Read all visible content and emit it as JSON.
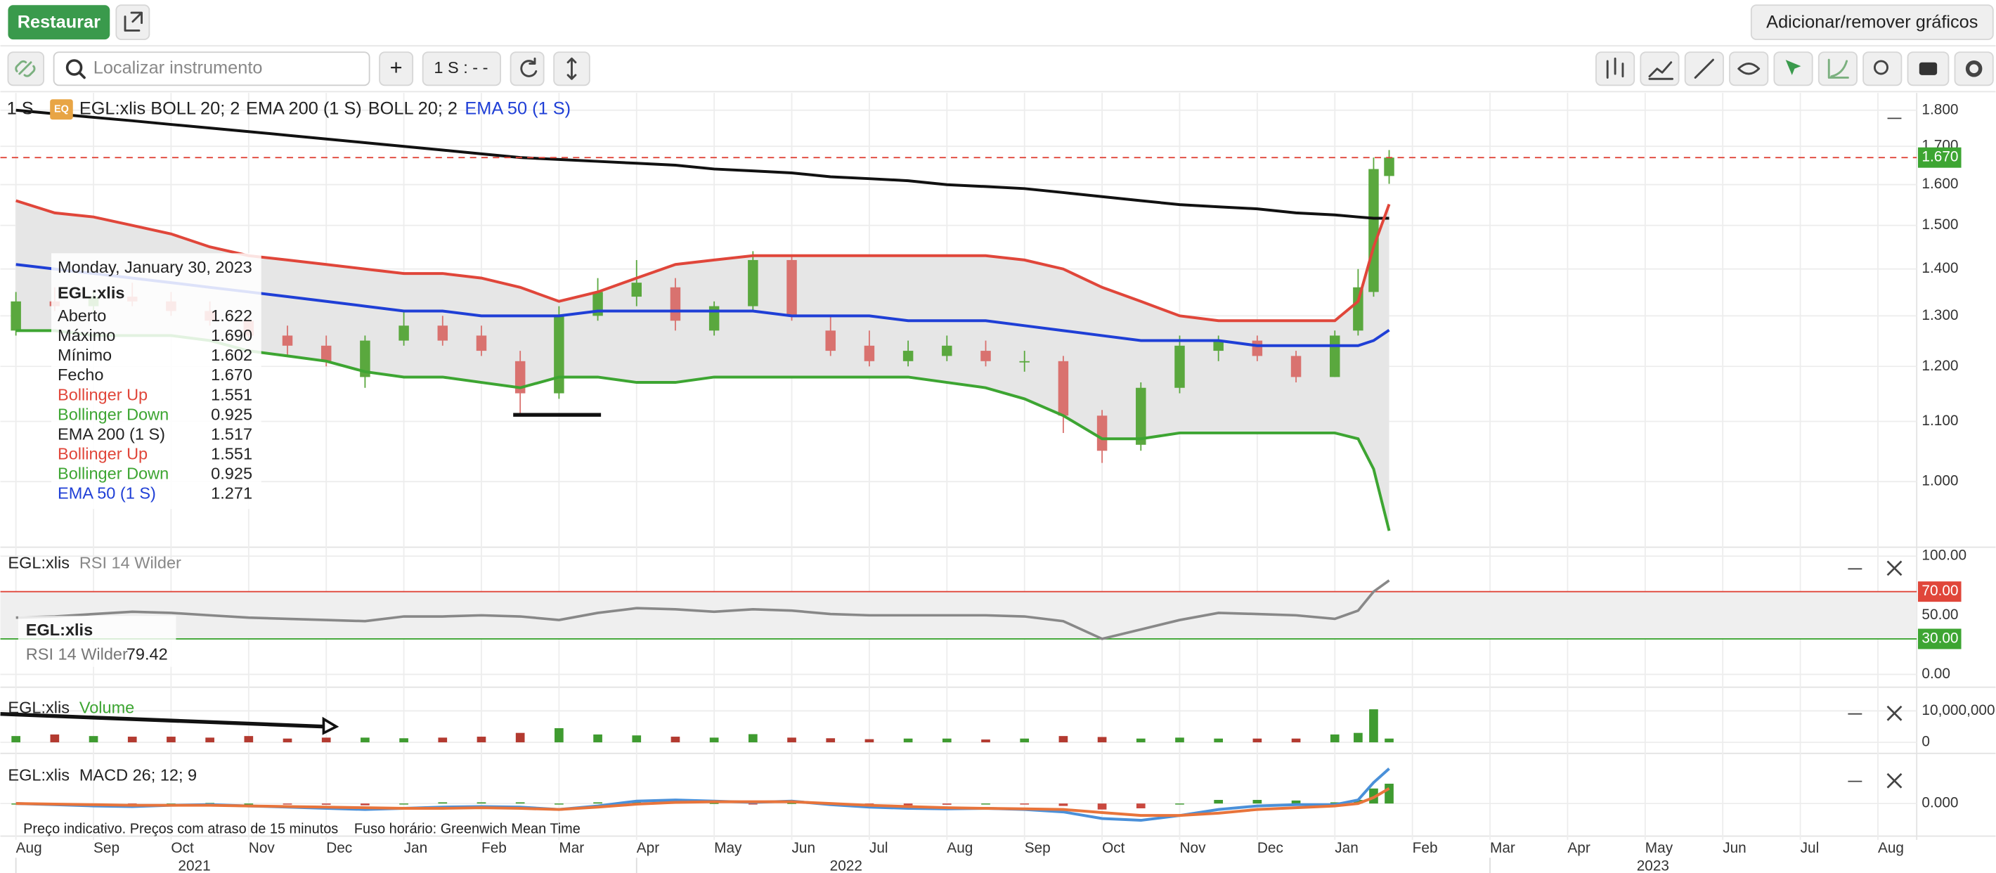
{
  "toolbar": {
    "restore": "Restaurar",
    "add_remove": "Adicionar/remover gráficos",
    "search_placeholder": "Localizar instrumento",
    "add": "+",
    "interval": "1 S : - -"
  },
  "legend": {
    "interval": "1 S",
    "badge": "EQ",
    "instrument": "EGL:xlis",
    "studies": [
      "BOLL 20; 2",
      "EMA 200 (1 S)",
      "BOLL 20; 2",
      "EMA 50 (1 S)"
    ]
  },
  "tooltip": {
    "date": "Monday, January 30, 2023",
    "instrument": "EGL:xlis",
    "rows": [
      {
        "label": "Aberto",
        "value": "1.622",
        "color": "#222222"
      },
      {
        "label": "Máximo",
        "value": "1.690",
        "color": "#222222"
      },
      {
        "label": "Mínimo",
        "value": "1.602",
        "color": "#222222"
      },
      {
        "label": "Fecho",
        "value": "1.670",
        "color": "#222222"
      },
      {
        "label": "Bollinger Up",
        "value": "1.551",
        "color": "#e0463a"
      },
      {
        "label": "Bollinger Down",
        "value": "0.925",
        "color": "#3da532"
      },
      {
        "label": "EMA 200 (1 S)",
        "value": "1.517",
        "color": "#222222"
      },
      {
        "label": "Bollinger Up",
        "value": "1.551",
        "color": "#e0463a"
      },
      {
        "label": "Bollinger Down",
        "value": "0.925",
        "color": "#3da532"
      },
      {
        "label": "EMA 50 (1 S)",
        "value": "1.271",
        "color": "#1f3fd6"
      }
    ]
  },
  "footer": {
    "note": "Preço indicativo. Preços com atraso de 15 minutos",
    "timezone": "Fuso horário: Greenwich Mean Time"
  },
  "chart_data": [
    {
      "type": "candlestick",
      "title": "EGL:xlis",
      "log_scale": true,
      "grid": true,
      "up_color": "#5aa83e",
      "down_color": "#d9726f",
      "band_fill": "#e6e6e6",
      "x": [
        0,
        0.5,
        1,
        1.5,
        2,
        2.5,
        3,
        3.5,
        4,
        4.5,
        5,
        5.5,
        6,
        6.5,
        7,
        7.5,
        8,
        8.5,
        9,
        9.5,
        10,
        10.5,
        11,
        11.5,
        12,
        12.5,
        13,
        13.5,
        14,
        14.5,
        15,
        15.5,
        16,
        16.5,
        17,
        17.3,
        17.5,
        17.7
      ],
      "open": [
        1.27,
        1.33,
        1.32,
        1.34,
        1.33,
        1.31,
        1.29,
        1.26,
        1.24,
        1.18,
        1.25,
        1.28,
        1.26,
        1.21,
        1.15,
        1.3,
        1.34,
        1.36,
        1.27,
        1.32,
        1.42,
        1.27,
        1.24,
        1.21,
        1.22,
        1.23,
        1.21,
        1.21,
        1.11,
        1.06,
        1.16,
        1.23,
        1.25,
        1.22,
        1.18,
        1.27,
        1.35,
        1.622
      ],
      "high": [
        1.35,
        1.36,
        1.35,
        1.37,
        1.35,
        1.33,
        1.3,
        1.28,
        1.26,
        1.26,
        1.31,
        1.3,
        1.28,
        1.23,
        1.32,
        1.38,
        1.42,
        1.38,
        1.33,
        1.44,
        1.43,
        1.3,
        1.27,
        1.25,
        1.26,
        1.25,
        1.23,
        1.22,
        1.12,
        1.17,
        1.26,
        1.26,
        1.26,
        1.23,
        1.27,
        1.4,
        1.67,
        1.69
      ],
      "low": [
        1.26,
        1.31,
        1.31,
        1.32,
        1.3,
        1.28,
        1.25,
        1.22,
        1.2,
        1.16,
        1.24,
        1.24,
        1.22,
        1.11,
        1.14,
        1.29,
        1.32,
        1.27,
        1.26,
        1.31,
        1.29,
        1.22,
        1.2,
        1.2,
        1.21,
        1.2,
        1.19,
        1.08,
        1.03,
        1.05,
        1.15,
        1.21,
        1.21,
        1.17,
        1.18,
        1.26,
        1.34,
        1.602
      ],
      "close": [
        1.33,
        1.32,
        1.34,
        1.33,
        1.31,
        1.29,
        1.26,
        1.24,
        1.21,
        1.25,
        1.28,
        1.25,
        1.23,
        1.15,
        1.3,
        1.35,
        1.37,
        1.29,
        1.32,
        1.42,
        1.3,
        1.23,
        1.21,
        1.23,
        1.24,
        1.21,
        1.21,
        1.11,
        1.05,
        1.16,
        1.24,
        1.25,
        1.22,
        1.18,
        1.26,
        1.36,
        1.64,
        1.67
      ],
      "series": [
        {
          "name": "EMA 200 (1 S)",
          "color": "#111111",
          "values": [
            1.8,
            1.79,
            1.78,
            1.77,
            1.76,
            1.75,
            1.74,
            1.73,
            1.72,
            1.71,
            1.7,
            1.69,
            1.68,
            1.67,
            1.665,
            1.66,
            1.655,
            1.65,
            1.64,
            1.635,
            1.63,
            1.62,
            1.615,
            1.61,
            1.6,
            1.595,
            1.59,
            1.58,
            1.57,
            1.56,
            1.55,
            1.545,
            1.54,
            1.53,
            1.525,
            1.52,
            1.517,
            1.517
          ]
        },
        {
          "name": "Bollinger Up",
          "color": "#e0463a",
          "values": [
            1.56,
            1.53,
            1.52,
            1.5,
            1.48,
            1.45,
            1.43,
            1.42,
            1.41,
            1.4,
            1.39,
            1.39,
            1.38,
            1.36,
            1.33,
            1.35,
            1.38,
            1.41,
            1.42,
            1.43,
            1.43,
            1.43,
            1.43,
            1.43,
            1.43,
            1.43,
            1.42,
            1.4,
            1.36,
            1.33,
            1.3,
            1.29,
            1.29,
            1.29,
            1.29,
            1.33,
            1.45,
            1.551
          ]
        },
        {
          "name": "Bollinger Down",
          "color": "#3da532",
          "values": [
            1.27,
            1.27,
            1.26,
            1.26,
            1.26,
            1.25,
            1.23,
            1.22,
            1.21,
            1.19,
            1.18,
            1.18,
            1.17,
            1.16,
            1.18,
            1.18,
            1.17,
            1.17,
            1.18,
            1.18,
            1.18,
            1.18,
            1.18,
            1.18,
            1.17,
            1.16,
            1.14,
            1.11,
            1.07,
            1.07,
            1.08,
            1.08,
            1.08,
            1.08,
            1.08,
            1.07,
            1.02,
            0.925
          ]
        },
        {
          "name": "EMA 50 (1 S)",
          "color": "#1f3fd6",
          "values": [
            1.41,
            1.4,
            1.39,
            1.38,
            1.37,
            1.36,
            1.35,
            1.34,
            1.33,
            1.32,
            1.31,
            1.31,
            1.3,
            1.3,
            1.3,
            1.31,
            1.31,
            1.31,
            1.31,
            1.31,
            1.3,
            1.3,
            1.3,
            1.29,
            1.29,
            1.29,
            1.28,
            1.27,
            1.26,
            1.25,
            1.25,
            1.25,
            1.24,
            1.24,
            1.24,
            1.24,
            1.25,
            1.271
          ]
        }
      ],
      "ylim": [
        0.905,
        1.85
      ],
      "yticks": [
        {
          "value": 1.0,
          "label": "1.000"
        },
        {
          "value": 1.1,
          "label": "1.100"
        },
        {
          "value": 1.2,
          "label": "1.200"
        },
        {
          "value": 1.3,
          "label": "1.300"
        },
        {
          "value": 1.4,
          "label": "1.400"
        },
        {
          "value": 1.5,
          "label": "1.500"
        },
        {
          "value": 1.6,
          "label": "1.600"
        },
        {
          "value": 1.7,
          "label": "1.700"
        },
        {
          "value": 1.8,
          "label": "1.800"
        }
      ],
      "last_price": {
        "value": 1.67,
        "label": "1.670",
        "color": "#3da532",
        "line_color": "#e0463a"
      }
    },
    {
      "type": "line",
      "instrument": "EGL:xlis",
      "title": "RSI 14 Wilder",
      "band_fill": "#efefef",
      "x": [
        0,
        0.5,
        1,
        1.5,
        2,
        2.5,
        3,
        3.5,
        4,
        4.5,
        5,
        5.5,
        6,
        6.5,
        7,
        7.5,
        8,
        8.5,
        9,
        9.5,
        10,
        10.5,
        11,
        11.5,
        12,
        12.5,
        13,
        13.5,
        14,
        14.5,
        15,
        15.5,
        16,
        16.5,
        17,
        17.3,
        17.5,
        17.7
      ],
      "series": [
        {
          "name": "RSI 14 Wilder",
          "color": "#888888",
          "values": [
            48,
            49,
            51,
            53,
            52,
            50,
            48,
            47,
            46,
            45,
            49,
            49,
            50,
            49,
            46,
            52,
            56,
            55,
            53,
            55,
            54,
            51,
            50,
            50,
            50,
            50,
            49,
            45,
            30,
            38,
            46,
            52,
            51,
            50,
            47,
            54,
            70,
            79.42
          ]
        }
      ],
      "levels": [
        {
          "value": 70,
          "label": "70.00",
          "color": "#e0463a"
        },
        {
          "value": 30,
          "label": "30.00",
          "color": "#3da532"
        }
      ],
      "ylim": [
        -8.7,
        105.4
      ],
      "yticks": [
        {
          "value": 0,
          "label": "0.00"
        },
        {
          "value": 50,
          "label": "50.00"
        },
        {
          "value": 100,
          "label": "100.00"
        }
      ],
      "tooltip": {
        "instrument": "EGL:xlis",
        "name": "RSI 14 Wilder",
        "value": "79.42"
      }
    },
    {
      "type": "bar",
      "instrument": "EGL:xlis",
      "title": "Volume",
      "title_color": "#3da532",
      "up_color": "#3f9b30",
      "down_color": "#b33a30",
      "x": [
        0,
        0.5,
        1,
        1.5,
        2,
        2.5,
        3,
        3.5,
        4,
        4.5,
        5,
        5.5,
        6,
        6.5,
        7,
        7.5,
        8,
        8.5,
        9,
        9.5,
        10,
        10.5,
        11,
        11.5,
        12,
        12.5,
        13,
        13.5,
        14,
        14.5,
        15,
        15.5,
        16,
        16.5,
        17,
        17.3,
        17.5,
        17.7
      ],
      "values": [
        2000000,
        2500000,
        2000000,
        1800000,
        1800000,
        1500000,
        2000000,
        1200000,
        1500000,
        1500000,
        1300000,
        1500000,
        1800000,
        3000000,
        4500000,
        2500000,
        2200000,
        1800000,
        1500000,
        2600000,
        1500000,
        1300000,
        1000000,
        1200000,
        1200000,
        900000,
        1200000,
        2000000,
        1700000,
        1200000,
        1500000,
        1200000,
        1200000,
        1200000,
        2500000,
        3000000,
        10500000,
        1200000
      ],
      "ylim": [
        -2700000,
        15500000
      ],
      "yticks": [
        0,
        {
          "value": 10000000,
          "label": "10,000,000"
        }
      ]
    },
    {
      "type": "macd",
      "instrument": "EGL:xlis",
      "title": "MACD 26; 12; 9",
      "x": [
        0,
        0.5,
        1,
        1.5,
        2,
        2.5,
        3,
        3.5,
        4,
        4.5,
        5,
        5.5,
        6,
        6.5,
        7,
        7.5,
        8,
        8.5,
        9,
        9.5,
        10,
        10.5,
        11,
        11.5,
        12,
        12.5,
        13,
        13.5,
        14,
        14.5,
        15,
        15.5,
        16,
        16.5,
        17,
        17.3,
        17.5,
        17.7
      ],
      "series": [
        {
          "color": "#4a90d9",
          "values": [
            0.0,
            -0.002,
            -0.004,
            -0.005,
            -0.003,
            -0.002,
            -0.004,
            -0.006,
            -0.008,
            -0.01,
            -0.008,
            -0.006,
            -0.005,
            -0.006,
            -0.01,
            -0.004,
            0.004,
            0.006,
            0.004,
            0.002,
            0.004,
            -0.002,
            -0.006,
            -0.008,
            -0.009,
            -0.008,
            -0.01,
            -0.014,
            -0.025,
            -0.028,
            -0.02,
            -0.01,
            -0.004,
            -0.002,
            -0.002,
            0.006,
            0.035,
            0.058
          ]
        },
        {
          "color": "#e8743b",
          "values": [
            0.0,
            -0.001,
            -0.002,
            -0.003,
            -0.003,
            -0.003,
            -0.004,
            -0.005,
            -0.006,
            -0.007,
            -0.008,
            -0.008,
            -0.007,
            -0.008,
            -0.01,
            -0.006,
            -0.001,
            0.002,
            0.003,
            0.003,
            0.003,
            0.0,
            -0.003,
            -0.005,
            -0.007,
            -0.008,
            -0.009,
            -0.01,
            -0.015,
            -0.02,
            -0.02,
            -0.016,
            -0.01,
            -0.007,
            -0.004,
            0.0,
            0.01,
            0.025
          ]
        }
      ],
      "histogram": [
        0,
        -0.001,
        -0.002,
        -0.002,
        0,
        0.001,
        0,
        -0.001,
        -0.002,
        -0.003,
        0,
        0.002,
        0.002,
        0.002,
        0,
        0.002,
        0.005,
        0.004,
        0.001,
        -0.001,
        0.001,
        -0.002,
        -0.003,
        -0.003,
        -0.002,
        0,
        -0.001,
        -0.004,
        -0.01,
        -0.008,
        0,
        0.006,
        0.006,
        0.005,
        0.002,
        0.006,
        0.025,
        0.033
      ],
      "up_color": "#3f9b30",
      "down_color": "#c9483e",
      "ylim": [
        -0.05,
        0.075
      ],
      "yticks": [
        {
          "value": 0,
          "label": "0.000"
        }
      ],
      "xlim": [
        -0.2,
        24.5
      ],
      "xticks": [
        {
          "value": 0,
          "label": "Aug"
        },
        {
          "value": 1,
          "label": "Sep"
        },
        {
          "value": 2,
          "label": "Oct"
        },
        {
          "value": 3,
          "label": "Nov"
        },
        {
          "value": 4,
          "label": "Dec"
        },
        {
          "value": 5,
          "label": "Jan"
        },
        {
          "value": 6,
          "label": "Feb"
        },
        {
          "value": 7,
          "label": "Mar"
        },
        {
          "value": 8,
          "label": "Apr"
        },
        {
          "value": 9,
          "label": "May"
        },
        {
          "value": 10,
          "label": "Jun"
        },
        {
          "value": 11,
          "label": "Jul"
        },
        {
          "value": 12,
          "label": "Aug"
        },
        {
          "value": 13,
          "label": "Sep"
        },
        {
          "value": 14,
          "label": "Oct"
        },
        {
          "value": 15,
          "label": "Nov"
        },
        {
          "value": 16,
          "label": "Dec"
        },
        {
          "value": 17,
          "label": "Jan"
        },
        {
          "value": 18,
          "label": "Feb"
        },
        {
          "value": 19,
          "label": "Mar"
        },
        {
          "value": 20,
          "label": "Apr"
        },
        {
          "value": 21,
          "label": "May"
        },
        {
          "value": 22,
          "label": "Jun"
        },
        {
          "value": 23,
          "label": "Jul"
        },
        {
          "value": 24,
          "label": "Aug"
        }
      ],
      "year_ticks": [
        {
          "value": 2.3,
          "label": "2021"
        },
        {
          "value": 10.7,
          "label": "2022"
        },
        {
          "value": 21.1,
          "label": "2023"
        }
      ]
    }
  ]
}
